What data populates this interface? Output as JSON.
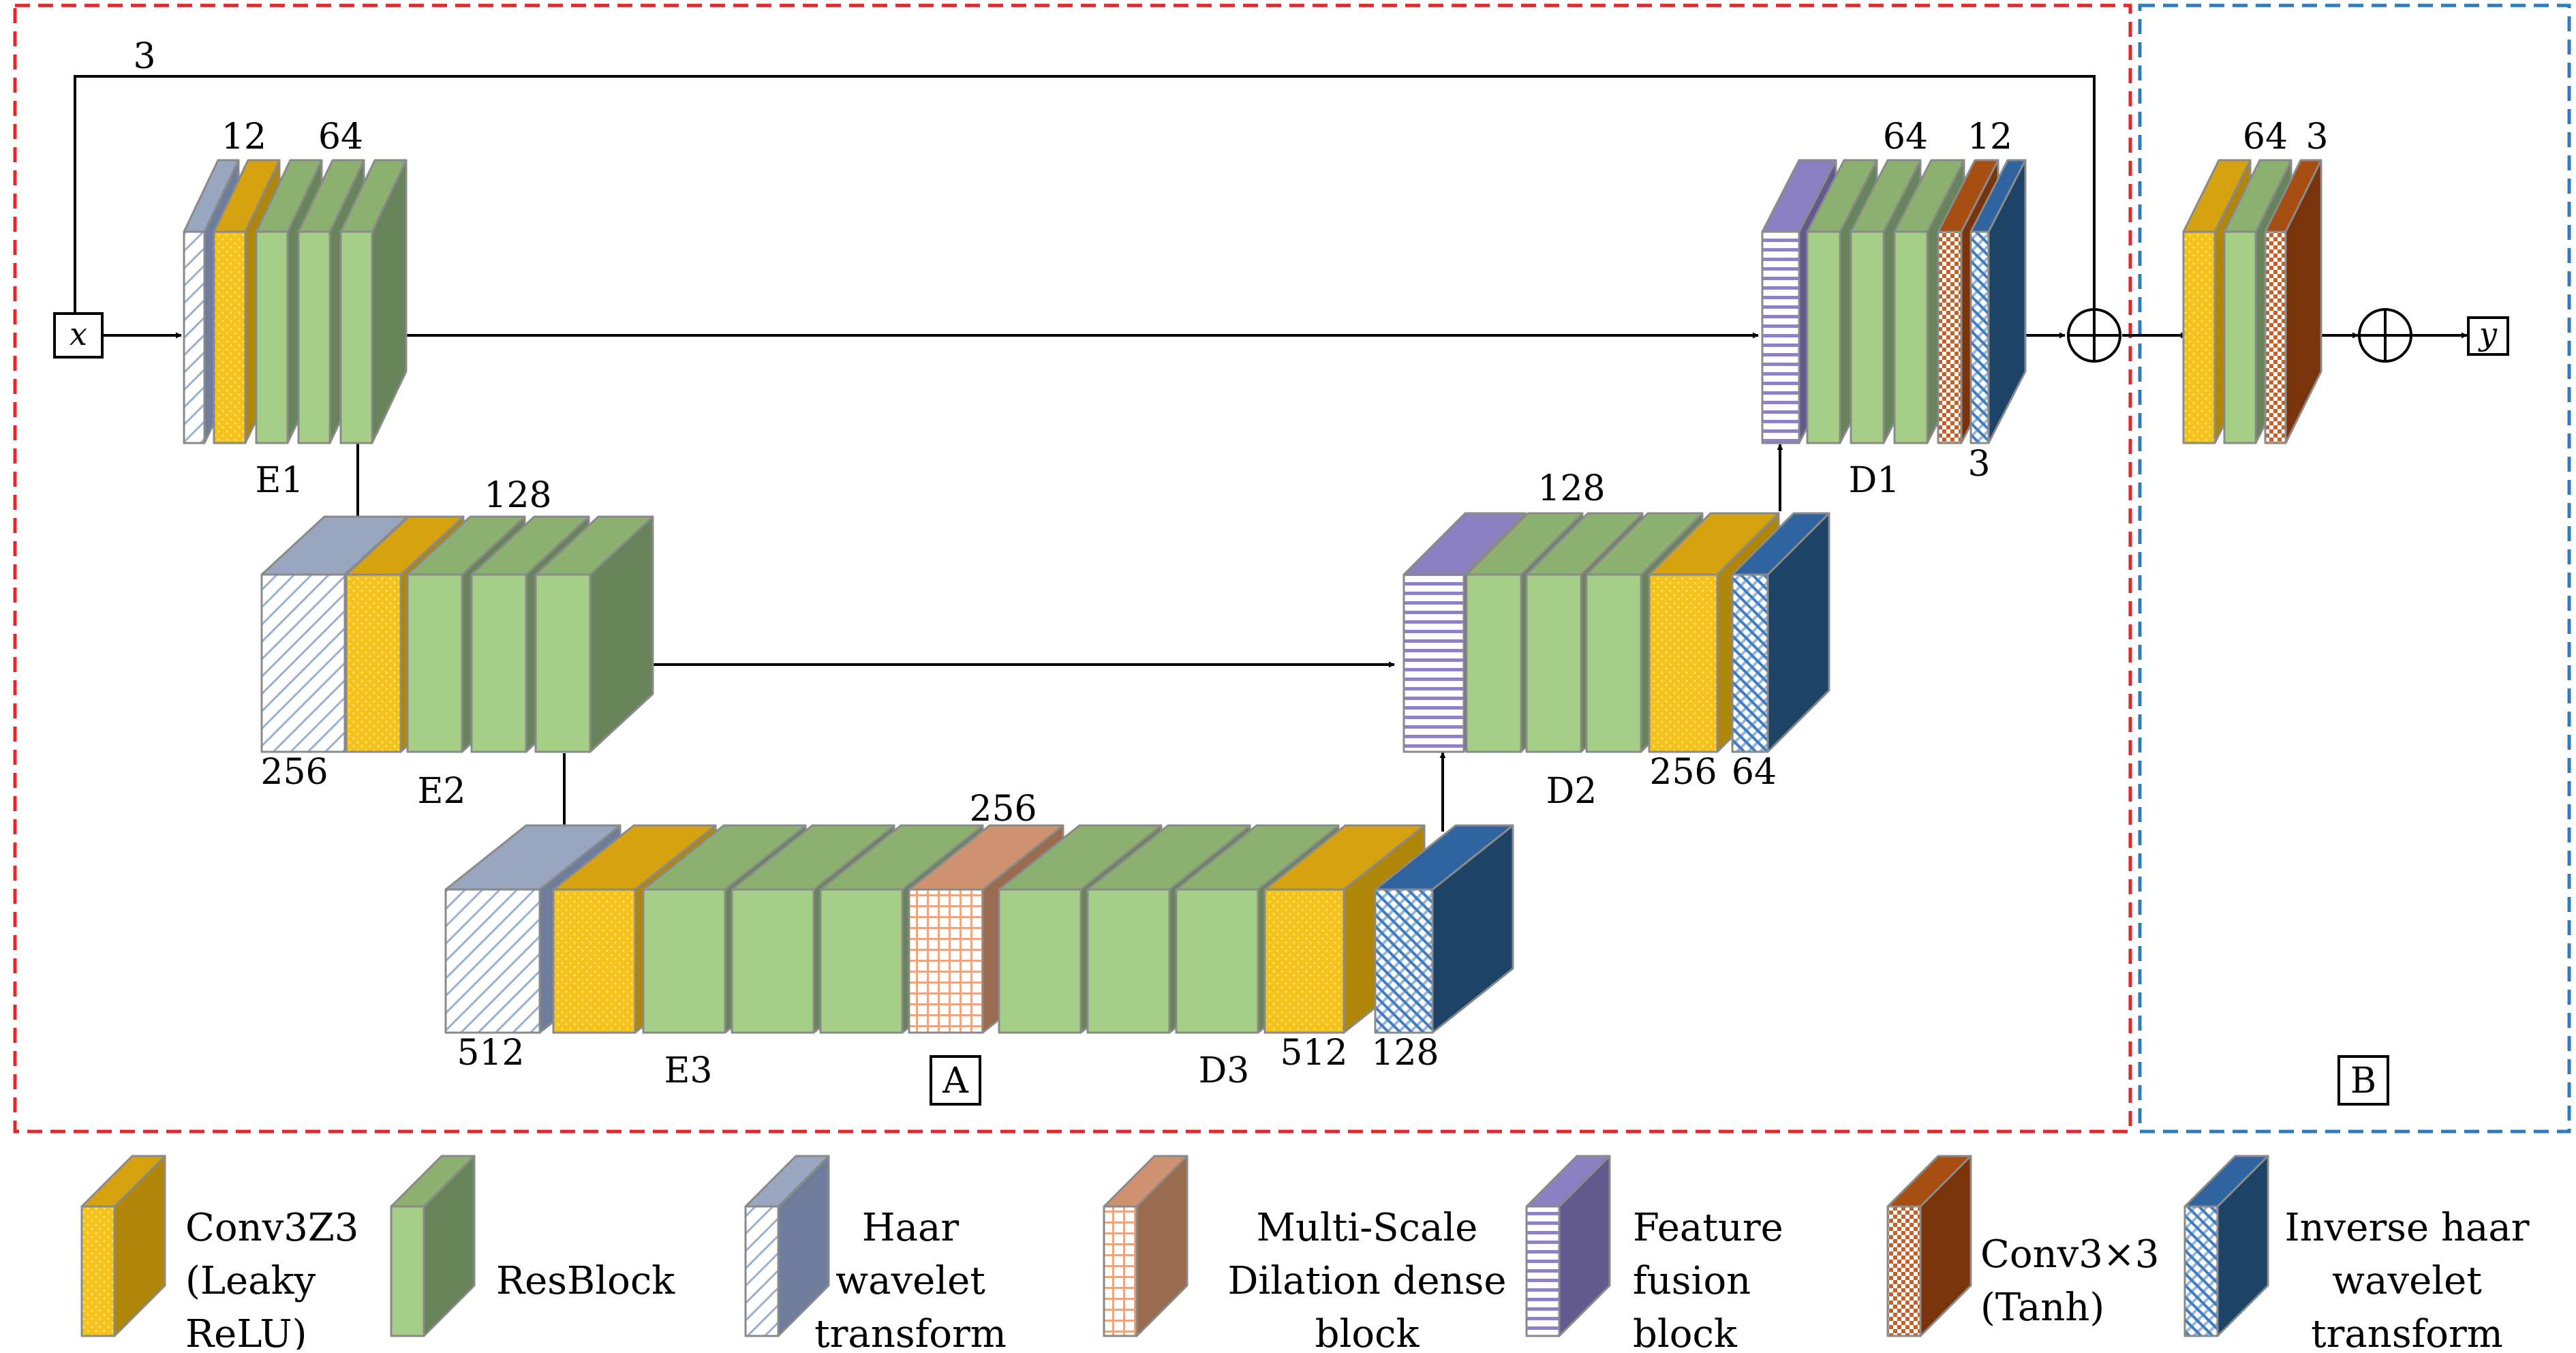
{
  "regionA": {
    "label": "A"
  },
  "regionB": {
    "label": "B"
  },
  "io": {
    "input": "x",
    "output": "y"
  },
  "skip_label": "3",
  "blocks": {
    "e1": {
      "name": "E1",
      "ch_a": "12",
      "ch_b": "64"
    },
    "e2": {
      "name": "E2",
      "ch_top": "128",
      "ch_bottom": "256"
    },
    "e3": {
      "name": "E3",
      "ch_bottom": "512"
    },
    "d3": {
      "name": "D3",
      "ch_top": "256",
      "ch_a": "512",
      "ch_b": "128"
    },
    "d2": {
      "name": "D2",
      "ch_top": "128",
      "ch_a": "256",
      "ch_b": "64"
    },
    "d1": {
      "name": "D1",
      "ch_a": "64",
      "ch_b": "12",
      "ch_c": "3"
    },
    "b": {
      "ch_a": "64",
      "ch_b": "3"
    }
  },
  "legend": [
    {
      "kind": "conv",
      "lines": [
        "Conv3Z3",
        "(Leaky",
        "ReLU)"
      ]
    },
    {
      "kind": "res",
      "lines": [
        "ResBlock"
      ]
    },
    {
      "kind": "haar",
      "lines": [
        "Haar",
        "wavelet",
        "transform"
      ]
    },
    {
      "kind": "msd",
      "lines": [
        "Multi-Scale",
        "Dilation dense",
        "block"
      ]
    },
    {
      "kind": "fuse",
      "lines": [
        "Feature",
        "fusion",
        "block"
      ]
    },
    {
      "kind": "tanh",
      "lines": [
        "Conv3×3",
        "(Tanh)"
      ]
    },
    {
      "kind": "ihaar",
      "lines": [
        "Inverse haar",
        "wavelet",
        "transform"
      ]
    }
  ],
  "colors": {
    "regionA_border": "#e5262a",
    "regionB_border": "#2f7bbf",
    "conv": "#f5bf1a",
    "res": "#a5cf86",
    "haar": "#90a0bd",
    "msd": "#d3926b",
    "fuse": "#9088c6",
    "tanh": "#8d3d0e",
    "ihaar": "#1d4e7e"
  }
}
